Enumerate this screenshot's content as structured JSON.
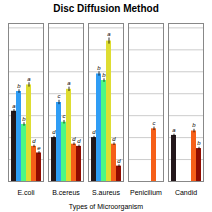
{
  "chart_data": {
    "type": "bar",
    "title": "Disc Diffusion Method",
    "xlabel": "Types of Microorganism",
    "categories": [
      "E.coli",
      "B.cereus",
      "S.aureus",
      "Penicilium",
      "Candid"
    ],
    "series": [
      {
        "values": [
          16.0,
          10.0,
          10.0,
          0.0,
          10.5
        ],
        "errors": [
          0.4,
          0.3,
          0.3,
          0.0,
          0.3
        ],
        "annotations": [
          "a",
          "d",
          "d",
          null,
          "a"
        ]
      },
      {
        "values": [
          20.5,
          18.0,
          24.5,
          0.0,
          0.0
        ],
        "errors": [
          0.4,
          0.5,
          0.5,
          0.0,
          0.0
        ],
        "annotations": [
          "b",
          "c",
          "b",
          null,
          null
        ]
      },
      {
        "values": [
          13.0,
          13.5,
          23.0,
          0.0,
          0.0
        ],
        "errors": [
          0.4,
          0.4,
          0.4,
          0.0,
          0.0
        ],
        "annotations": [
          "b",
          "c",
          "b",
          null,
          null
        ]
      },
      {
        "values": [
          22.0,
          21.0,
          32.0,
          0.0,
          0.0
        ],
        "errors": [
          0.5,
          0.5,
          0.7,
          0.0,
          0.0
        ],
        "annotations": [
          "a",
          "a",
          "a",
          null,
          null
        ]
      },
      {
        "values": [
          8.0,
          8.5,
          8.5,
          12.0,
          11.5
        ],
        "errors": [
          0.3,
          0.3,
          0.3,
          0.4,
          0.4
        ],
        "annotations": [
          "d",
          "d",
          "d",
          "c",
          "b"
        ]
      },
      {
        "values": [
          6.5,
          8.0,
          3.5,
          0.0,
          7.5
        ],
        "errors": [
          0.3,
          0.3,
          0.3,
          0.0,
          0.3
        ],
        "annotations": [
          "e",
          "d",
          "d",
          null,
          "b"
        ]
      }
    ],
    "ylim": [
      0,
      36
    ],
    "yticks": [
      0,
      5,
      10,
      15,
      20,
      25,
      30,
      35
    ],
    "grid": true,
    "tick_labels": "x"
  }
}
